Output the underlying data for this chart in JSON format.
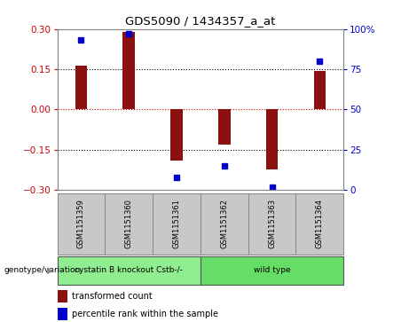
{
  "title": "GDS5090 / 1434357_a_at",
  "samples": [
    "GSM1151359",
    "GSM1151360",
    "GSM1151361",
    "GSM1151362",
    "GSM1151363",
    "GSM1151364"
  ],
  "transformed_count": [
    0.163,
    0.29,
    -0.19,
    -0.13,
    -0.222,
    0.143
  ],
  "percentile_rank": [
    93,
    97,
    8,
    15,
    2,
    80
  ],
  "ylim_left": [
    -0.3,
    0.3
  ],
  "ylim_right": [
    0,
    100
  ],
  "bar_color": "#8B1010",
  "dot_color": "#0000CC",
  "zero_line_color": "#CC0000",
  "grid_color": "black",
  "groups": [
    {
      "label": "cystatin B knockout Cstb-/-",
      "indices": [
        0,
        1,
        2
      ],
      "color": "#90EE90"
    },
    {
      "label": "wild type",
      "indices": [
        3,
        4,
        5
      ],
      "color": "#66DD66"
    }
  ],
  "sample_box_color": "#C8C8C8",
  "left_yticks": [
    -0.3,
    -0.15,
    0,
    0.15,
    0.3
  ],
  "right_yticks": [
    0,
    25,
    50,
    75,
    100
  ],
  "left_tick_color": "#CC0000",
  "right_tick_color": "#0000CC",
  "legend_labels": [
    "transformed count",
    "percentile rank within the sample"
  ],
  "legend_colors": [
    "#8B1010",
    "#0000CC"
  ],
  "bar_width": 0.25
}
